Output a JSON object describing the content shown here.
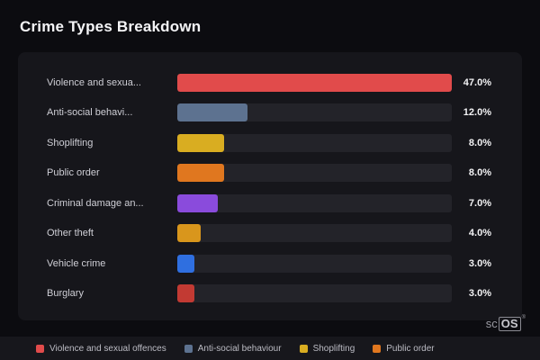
{
  "page_title": "Crime Types Breakdown",
  "logo": {
    "sc": "sc",
    "os": "OS",
    "reg": "®"
  },
  "chart_data": {
    "type": "bar",
    "orientation": "horizontal",
    "title": "Crime Types Breakdown",
    "categories": [
      "Violence and sexua...",
      "Anti-social behavi...",
      "Shoplifting",
      "Public order",
      "Criminal damage an...",
      "Other theft",
      "Vehicle crime",
      "Burglary"
    ],
    "values": [
      47.0,
      12.0,
      8.0,
      8.0,
      7.0,
      4.0,
      3.0,
      3.0
    ],
    "value_labels": [
      "47.0%",
      "12.0%",
      "8.0%",
      "8.0%",
      "7.0%",
      "4.0%",
      "3.0%",
      "3.0%"
    ],
    "colors": [
      "#e14b4b",
      "#5d7290",
      "#d9ad21",
      "#e0771f",
      "#8a4bdc",
      "#d9961c",
      "#2f6fe0",
      "#c23a33"
    ],
    "max_value": 47.0,
    "xlim": [
      0,
      47
    ],
    "grid": false,
    "legend_position": "bottom",
    "legend": [
      {
        "label": "Violence and sexual offences",
        "color": "#e14b4b"
      },
      {
        "label": "Anti-social behaviour",
        "color": "#5d7290"
      },
      {
        "label": "Shoplifting",
        "color": "#d9ad21"
      },
      {
        "label": "Public order",
        "color": "#e0771f"
      }
    ]
  }
}
